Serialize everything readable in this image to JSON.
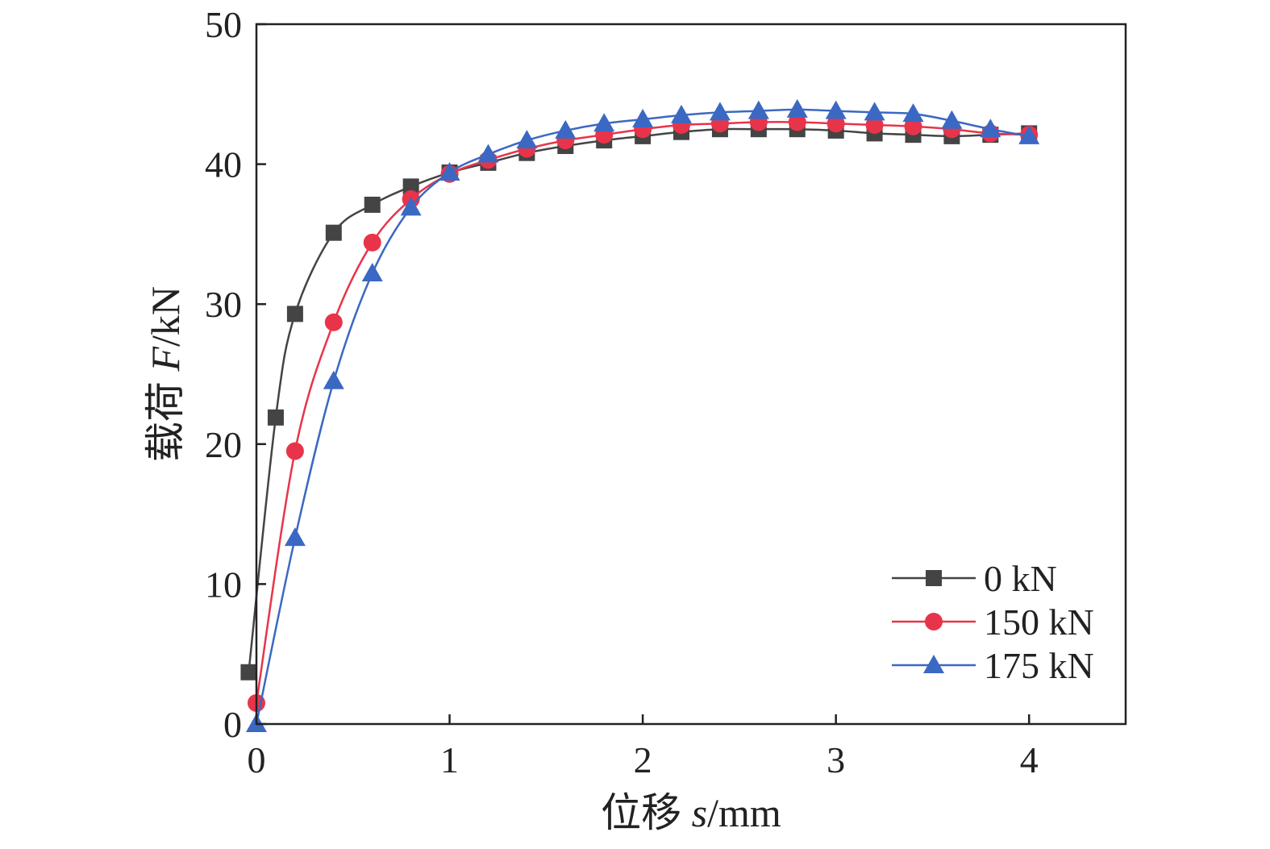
{
  "chart_data": {
    "type": "line",
    "title": "",
    "xlabel": {
      "prefix": "位移 ",
      "symbol": "s",
      "unit": "/mm"
    },
    "ylabel": {
      "prefix": "载荷 ",
      "symbol": "F",
      "unit": "/kN"
    },
    "xlim": [
      0,
      4.5
    ],
    "ylim": [
      0,
      50
    ],
    "xticks": [
      "0",
      "1",
      "2",
      "3",
      "4"
    ],
    "xtick_values": [
      0,
      1,
      2,
      3,
      4
    ],
    "yticks": [
      "0",
      "10",
      "20",
      "30",
      "40",
      "50"
    ],
    "ytick_values": [
      0,
      10,
      20,
      30,
      40,
      50
    ],
    "grid": false,
    "legend_position": "bottom-right",
    "series": [
      {
        "name": "0 kN",
        "color": "#444444",
        "marker": "square",
        "points": [
          [
            -0.04,
            3.7
          ],
          [
            0.1,
            21.9
          ],
          [
            0.2,
            29.3
          ],
          [
            0.4,
            35.1
          ],
          [
            0.6,
            37.1
          ],
          [
            0.8,
            38.4
          ],
          [
            1.0,
            39.4
          ],
          [
            1.2,
            40.1
          ],
          [
            1.4,
            40.8
          ],
          [
            1.6,
            41.3
          ],
          [
            1.8,
            41.7
          ],
          [
            2.0,
            42.0
          ],
          [
            2.2,
            42.3
          ],
          [
            2.4,
            42.5
          ],
          [
            2.6,
            42.5
          ],
          [
            2.8,
            42.5
          ],
          [
            3.0,
            42.4
          ],
          [
            3.2,
            42.2
          ],
          [
            3.4,
            42.1
          ],
          [
            3.6,
            42.0
          ],
          [
            3.8,
            42.1
          ],
          [
            4.0,
            42.2
          ]
        ]
      },
      {
        "name": "150 kN",
        "color": "#e8344a",
        "marker": "circle",
        "points": [
          [
            0.0,
            1.5
          ],
          [
            0.2,
            19.5
          ],
          [
            0.4,
            28.7
          ],
          [
            0.6,
            34.4
          ],
          [
            0.8,
            37.5
          ],
          [
            1.0,
            39.3
          ],
          [
            1.2,
            40.3
          ],
          [
            1.4,
            41.1
          ],
          [
            1.6,
            41.7
          ],
          [
            1.8,
            42.1
          ],
          [
            2.0,
            42.5
          ],
          [
            2.2,
            42.8
          ],
          [
            2.4,
            42.9
          ],
          [
            2.6,
            43.0
          ],
          [
            2.8,
            43.0
          ],
          [
            3.0,
            42.9
          ],
          [
            3.2,
            42.8
          ],
          [
            3.4,
            42.7
          ],
          [
            3.6,
            42.5
          ],
          [
            3.8,
            42.2
          ],
          [
            4.0,
            42.1
          ]
        ]
      },
      {
        "name": "175 kN",
        "color": "#3b68c3",
        "marker": "triangle",
        "points": [
          [
            0.0,
            0.0
          ],
          [
            0.2,
            13.3
          ],
          [
            0.4,
            24.5
          ],
          [
            0.6,
            32.2
          ],
          [
            0.8,
            36.9
          ],
          [
            1.0,
            39.4
          ],
          [
            1.2,
            40.7
          ],
          [
            1.4,
            41.7
          ],
          [
            1.6,
            42.4
          ],
          [
            1.8,
            42.9
          ],
          [
            2.0,
            43.2
          ],
          [
            2.2,
            43.5
          ],
          [
            2.4,
            43.7
          ],
          [
            2.6,
            43.8
          ],
          [
            2.8,
            43.9
          ],
          [
            3.0,
            43.8
          ],
          [
            3.2,
            43.7
          ],
          [
            3.4,
            43.6
          ],
          [
            3.6,
            43.1
          ],
          [
            3.8,
            42.5
          ],
          [
            4.0,
            42.0
          ]
        ]
      }
    ]
  }
}
